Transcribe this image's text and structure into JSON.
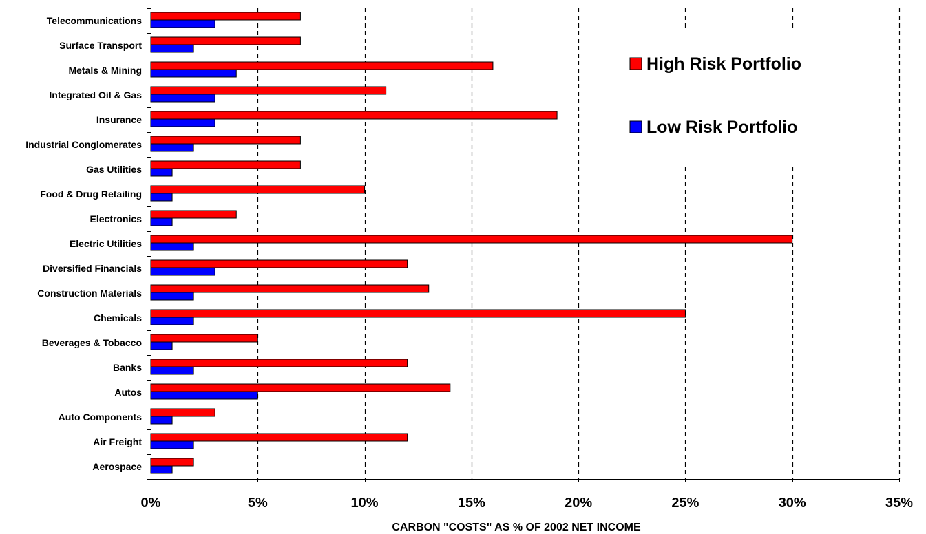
{
  "chart_data": {
    "type": "bar",
    "orientation": "horizontal",
    "categories": [
      "Telecommunications",
      "Surface Transport",
      "Metals & Mining",
      "Integrated Oil & Gas",
      "Insurance",
      "Industrial Conglomerates",
      "Gas Utilities",
      "Food & Drug Retailing",
      "Electronics",
      "Electric Utilities",
      "Diversified Financials",
      "Construction Materials",
      "Chemicals",
      "Beverages & Tobacco",
      "Banks",
      "Autos",
      "Auto Components",
      "Air Freight",
      "Aerospace"
    ],
    "series": [
      {
        "name": "High Risk Portfolio",
        "color": "#ff0000",
        "values": [
          7,
          7,
          16,
          11,
          19,
          7,
          7,
          10,
          4,
          30,
          12,
          13,
          25,
          5,
          12,
          14,
          3,
          12,
          2
        ]
      },
      {
        "name": "Low Risk Portfolio",
        "color": "#0000ff",
        "values": [
          3,
          2,
          4,
          3,
          3,
          2,
          1,
          1,
          1,
          2,
          3,
          2,
          2,
          1,
          2,
          5,
          1,
          2,
          1
        ]
      }
    ],
    "xlim": [
      0,
      35
    ],
    "xticks": [
      0,
      5,
      10,
      15,
      20,
      25,
      30,
      35
    ],
    "xtick_labels": [
      "0%",
      "5%",
      "10%",
      "15%",
      "20%",
      "25%",
      "30%",
      "35%"
    ],
    "xlabel": "CARBON \"COSTS\" AS % OF 2002 NET INCOME",
    "grid": "vertical dashed",
    "legend_position": "top-right"
  }
}
